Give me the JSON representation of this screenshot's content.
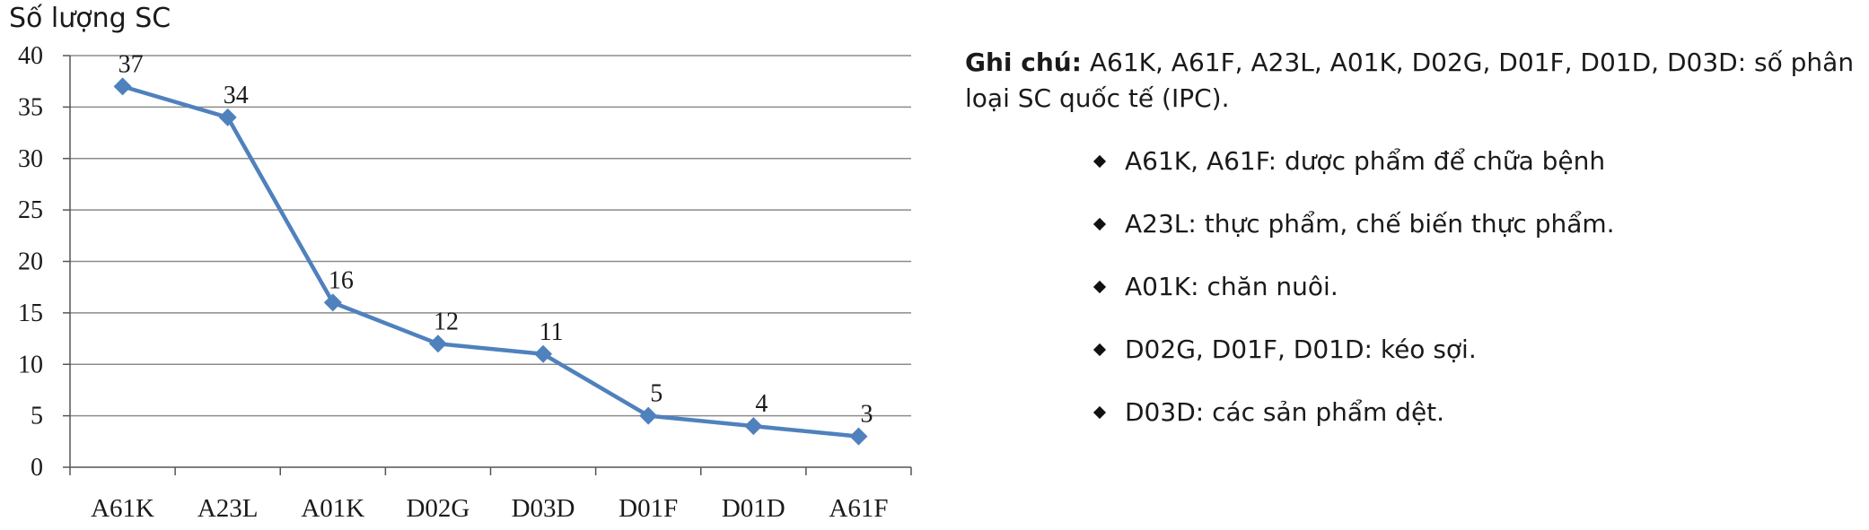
{
  "chart_data": {
    "type": "line",
    "ylabel": "Số lượng SC",
    "xlabel": "",
    "categories": [
      "A61K",
      "A23L",
      "A01K",
      "D02G",
      "D03D",
      "D01F",
      "D01D",
      "A61F"
    ],
    "values": [
      37,
      34,
      16,
      12,
      11,
      5,
      4,
      3
    ],
    "ylim": [
      0,
      40
    ],
    "yticks": [
      0,
      5,
      10,
      15,
      20,
      25,
      30,
      35,
      40
    ],
    "grid": true,
    "line_color": "#4F81BD",
    "grid_color": "#8c8c8c",
    "marker": "diamond"
  },
  "note": {
    "label": "Ghi chú:",
    "text": "A61K, A61F, A23L, A01K, D02G, D01F, D01D, D03D: số phân loại SC quốc tế (IPC).",
    "bullet_icon": "diamond-bullet-icon",
    "items": [
      "A61K, A61F: dược phẩm để chữa bệnh",
      "A23L:  thực phẩm, chế biến thực phẩm.",
      "A01K: chăn nuôi.",
      "D02G, D01F, D01D: kéo sợi.",
      "D03D: các sản phẩm dệt."
    ]
  }
}
